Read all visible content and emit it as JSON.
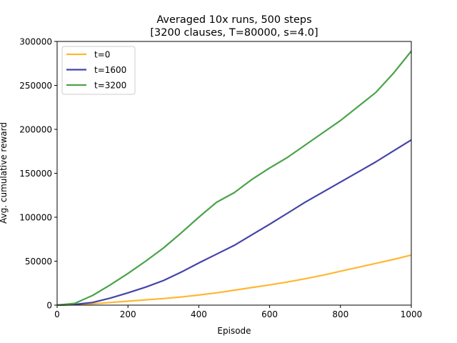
{
  "chart_data": {
    "type": "line",
    "title": "Averaged 10x runs, 500 steps",
    "subtitle": "[3200 clauses, T=80000, s=4.0]",
    "xlabel": "Episode",
    "ylabel": "Avg. cumulative reward",
    "xlim": [
      0,
      1000
    ],
    "ylim": [
      0,
      300000
    ],
    "xticks": [
      0,
      200,
      400,
      600,
      800,
      1000
    ],
    "yticks": [
      0,
      50000,
      100000,
      150000,
      200000,
      250000,
      300000
    ],
    "grid": false,
    "legend_placement": "top-left",
    "x": [
      0,
      50,
      100,
      150,
      200,
      250,
      300,
      350,
      400,
      450,
      500,
      550,
      600,
      650,
      700,
      750,
      800,
      850,
      900,
      950,
      1000
    ],
    "series": [
      {
        "name": "t=0",
        "color": "#ffb733",
        "values": [
          0,
          500,
          1500,
          3000,
          4500,
          6000,
          7500,
          9300,
          11500,
          14000,
          17000,
          20000,
          23000,
          26300,
          30000,
          34000,
          38500,
          43000,
          47500,
          52000,
          57000
        ]
      },
      {
        "name": "t=1600",
        "color": "#4444a8",
        "values": [
          0,
          800,
          3000,
          8000,
          14000,
          20500,
          28000,
          37500,
          48000,
          58000,
          68000,
          80000,
          92000,
          104500,
          117000,
          128500,
          140000,
          151500,
          163000,
          175500,
          188000
        ]
      },
      {
        "name": "t=3200",
        "color": "#4aa34a",
        "values": [
          0,
          2000,
          11000,
          23000,
          36000,
          50000,
          65000,
          82000,
          100000,
          117000,
          128000,
          143000,
          156000,
          168000,
          182000,
          196000,
          210000,
          226000,
          242000,
          264000,
          289000
        ]
      }
    ]
  }
}
